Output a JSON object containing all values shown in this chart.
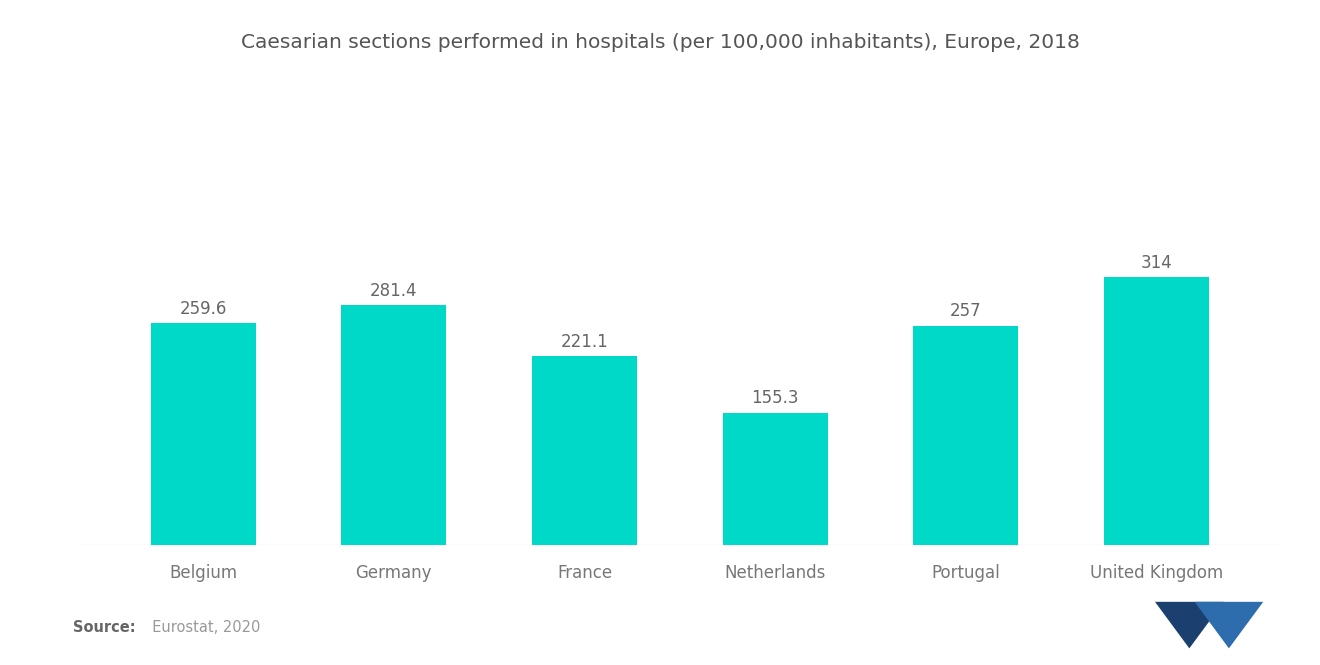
{
  "title": "Caesarian sections performed in hospitals (per 100,000 inhabitants), Europe, 2018",
  "categories": [
    "Belgium",
    "Germany",
    "France",
    "Netherlands",
    "Portugal",
    "United Kingdom"
  ],
  "values": [
    259.6,
    281.4,
    221.1,
    155.3,
    257,
    314
  ],
  "bar_color": "#00D9C8",
  "value_labels": [
    "259.6",
    "281.4",
    "221.1",
    "155.3",
    "257",
    "314"
  ],
  "source_bold": "Source:",
  "source_rest": "  Eurostat, 2020",
  "background_color": "#FFFFFF",
  "title_color": "#555555",
  "label_color": "#777777",
  "value_color": "#666666",
  "title_fontsize": 14.5,
  "label_fontsize": 12,
  "value_fontsize": 12,
  "ylim": [
    0,
    420
  ],
  "bar_width": 0.55,
  "logo_left_color": "#1B3F6E",
  "logo_right_color": "#2E6DAD"
}
